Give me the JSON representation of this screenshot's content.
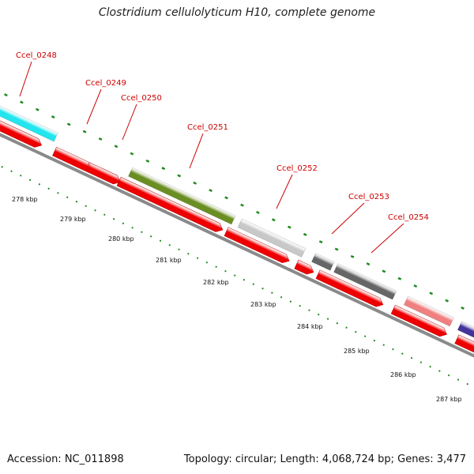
{
  "title": "Clostridium cellulolyticum H10, complete genome",
  "accession": "Accession: NC_011898",
  "summary": "Topology: circular; Length: 4,068,724 bp; Genes: 3,477",
  "colors": {
    "cds": "#ee0000",
    "backbone": "#8a8a8a",
    "ticks": "#1f8a1f",
    "label_text": "#cc0000"
  },
  "genes": [
    {
      "id": "Ccel_0248",
      "label": "Ccel_0248",
      "color": "#22e5ee"
    },
    {
      "id": "Ccel_0249",
      "label": "Ccel_0249",
      "color": "#ee0000"
    },
    {
      "id": "Ccel_0250",
      "label": "Ccel_0250",
      "color": "#ee0000"
    },
    {
      "id": "Ccel_0251",
      "label": "Ccel_0251",
      "color": "#6b8e23"
    },
    {
      "id": "Ccel_0252",
      "label": "Ccel_0252",
      "color": "#c8c8c8"
    },
    {
      "id": "Ccel_0253",
      "label": "Ccel_0253",
      "color": "#666666"
    },
    {
      "id": "Ccel_0254",
      "label": "Ccel_0254",
      "color": "#f08080"
    }
  ],
  "scale_labels": [
    "278 kbp",
    "279 kbp",
    "280 kbp",
    "281 kbp",
    "282 kbp",
    "283 kbp",
    "284 kbp",
    "285 kbp",
    "286 kbp",
    "287 kbp"
  ]
}
